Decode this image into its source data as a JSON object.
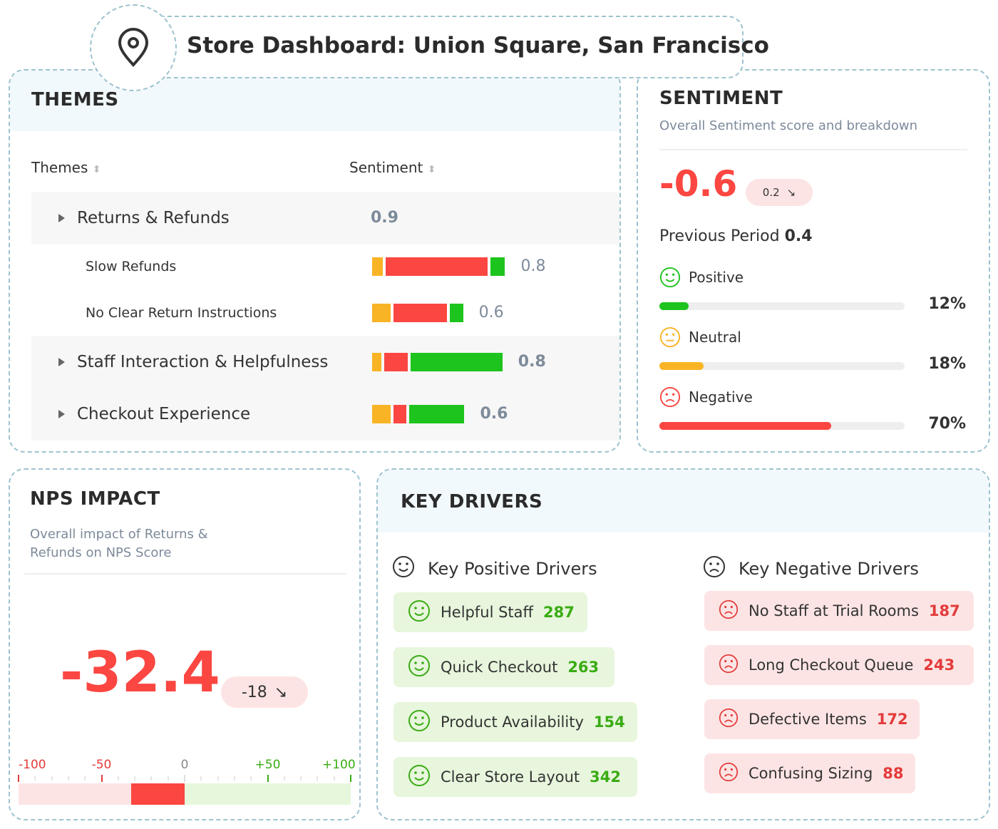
{
  "header": {
    "title": "Store Dashboard: Union Square, San Francisco",
    "icon": "map-pin-icon"
  },
  "themes": {
    "title": "THEMES",
    "col_themes": "Themes",
    "col_sentiment": "Sentiment",
    "rows": [
      {
        "name": "Returns & Refunds",
        "score": "0.9",
        "level": 1,
        "segments": null
      },
      {
        "name": "Slow Refunds",
        "score": "0.8",
        "level": 2,
        "segments": [
          8,
          78,
          11
        ]
      },
      {
        "name": "No Clear Return Instructions",
        "score": "0.6",
        "level": 2,
        "segments": [
          14,
          41,
          10
        ]
      },
      {
        "name": "Staff Interaction & Helpfulness",
        "score": "0.8",
        "level": 1,
        "segments": [
          7,
          18,
          70
        ]
      },
      {
        "name": "Checkout Experience",
        "score": "0.6",
        "level": 1,
        "segments": [
          14,
          10,
          42
        ]
      }
    ]
  },
  "sentiment": {
    "title": "SENTIMENT",
    "subtitle": "Overall Sentiment score and breakdown",
    "score": "-0.6",
    "delta": "0.2",
    "previous_label": "Previous Period",
    "previous_value": "0.4",
    "breakdown": [
      {
        "label": "Positive",
        "pct": 12,
        "pct_label": "12%",
        "color": "#1ec41e"
      },
      {
        "label": "Neutral",
        "pct": 18,
        "pct_label": "18%",
        "color": "#f9b425"
      },
      {
        "label": "Negative",
        "pct": 70,
        "pct_label": "70%",
        "color": "#fb4641"
      }
    ]
  },
  "nps": {
    "title": "NPS IMPACT",
    "subtitle_1": "Overall impact of Returns &",
    "subtitle_2": "Refunds on NPS Score",
    "score": "-32.4",
    "value": -32.4,
    "delta": "-18",
    "ticks": [
      "-100",
      "-50",
      "0",
      "+50",
      "+100"
    ]
  },
  "drivers": {
    "title": "KEY DRIVERS",
    "positive_title": "Key Positive Drivers",
    "negative_title": "Key Negative Drivers",
    "positive": [
      {
        "label": "Helpful Staff",
        "count": "287"
      },
      {
        "label": "Quick Checkout",
        "count": "263"
      },
      {
        "label": "Product Availability",
        "count": "154"
      },
      {
        "label": "Clear Store Layout",
        "count": "342"
      }
    ],
    "negative": [
      {
        "label": "No Staff at Trial Rooms",
        "count": "187"
      },
      {
        "label": "Long Checkout Queue",
        "count": "243"
      },
      {
        "label": "Defective Items",
        "count": "172"
      },
      {
        "label": "Confusing Sizing",
        "count": "88"
      }
    ]
  },
  "colors": {
    "red": "#fb4641",
    "green": "#1ec41e",
    "orange": "#f9b425"
  }
}
